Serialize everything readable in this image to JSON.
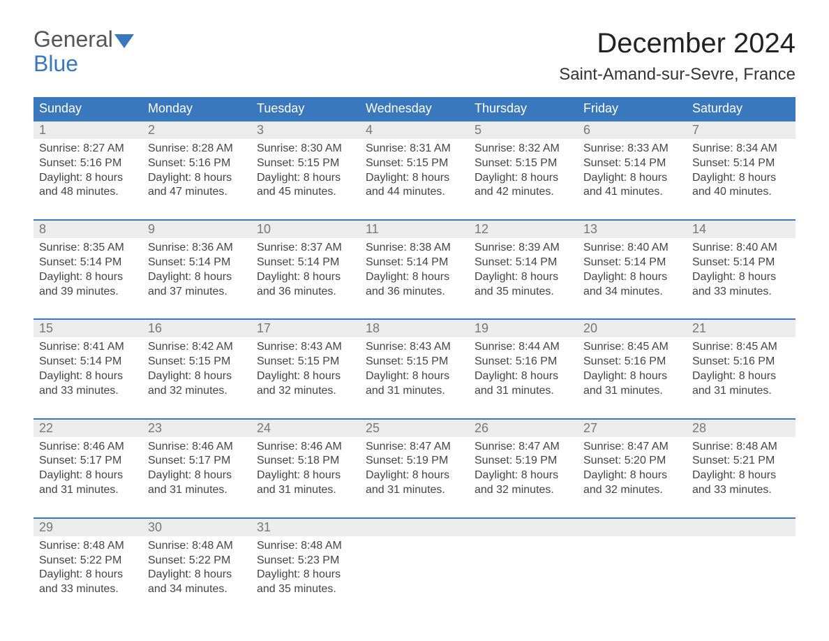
{
  "logo": {
    "line1": "General",
    "line2": "Blue"
  },
  "title": "December 2024",
  "location": "Saint-Amand-sur-Sevre, France",
  "colors": {
    "brand": "#3a78bd",
    "headerText": "#ffffff",
    "dayNumBg": "#ececec",
    "dayNumText": "#777777",
    "bodyText": "#444444",
    "pageBg": "#ffffff"
  },
  "typography": {
    "titleSize": 40,
    "locationSize": 24,
    "dayHeadSize": 18,
    "dayNumSize": 18,
    "bodySize": 16
  },
  "dayNames": [
    "Sunday",
    "Monday",
    "Tuesday",
    "Wednesday",
    "Thursday",
    "Friday",
    "Saturday"
  ],
  "labels": {
    "sunrise": "Sunrise:",
    "sunset": "Sunset:",
    "daylight": "Daylight:"
  },
  "weeks": [
    [
      {
        "n": "1",
        "sr": "8:27 AM",
        "ss": "5:16 PM",
        "dl": "8 hours and 48 minutes."
      },
      {
        "n": "2",
        "sr": "8:28 AM",
        "ss": "5:16 PM",
        "dl": "8 hours and 47 minutes."
      },
      {
        "n": "3",
        "sr": "8:30 AM",
        "ss": "5:15 PM",
        "dl": "8 hours and 45 minutes."
      },
      {
        "n": "4",
        "sr": "8:31 AM",
        "ss": "5:15 PM",
        "dl": "8 hours and 44 minutes."
      },
      {
        "n": "5",
        "sr": "8:32 AM",
        "ss": "5:15 PM",
        "dl": "8 hours and 42 minutes."
      },
      {
        "n": "6",
        "sr": "8:33 AM",
        "ss": "5:14 PM",
        "dl": "8 hours and 41 minutes."
      },
      {
        "n": "7",
        "sr": "8:34 AM",
        "ss": "5:14 PM",
        "dl": "8 hours and 40 minutes."
      }
    ],
    [
      {
        "n": "8",
        "sr": "8:35 AM",
        "ss": "5:14 PM",
        "dl": "8 hours and 39 minutes."
      },
      {
        "n": "9",
        "sr": "8:36 AM",
        "ss": "5:14 PM",
        "dl": "8 hours and 37 minutes."
      },
      {
        "n": "10",
        "sr": "8:37 AM",
        "ss": "5:14 PM",
        "dl": "8 hours and 36 minutes."
      },
      {
        "n": "11",
        "sr": "8:38 AM",
        "ss": "5:14 PM",
        "dl": "8 hours and 36 minutes."
      },
      {
        "n": "12",
        "sr": "8:39 AM",
        "ss": "5:14 PM",
        "dl": "8 hours and 35 minutes."
      },
      {
        "n": "13",
        "sr": "8:40 AM",
        "ss": "5:14 PM",
        "dl": "8 hours and 34 minutes."
      },
      {
        "n": "14",
        "sr": "8:40 AM",
        "ss": "5:14 PM",
        "dl": "8 hours and 33 minutes."
      }
    ],
    [
      {
        "n": "15",
        "sr": "8:41 AM",
        "ss": "5:14 PM",
        "dl": "8 hours and 33 minutes."
      },
      {
        "n": "16",
        "sr": "8:42 AM",
        "ss": "5:15 PM",
        "dl": "8 hours and 32 minutes."
      },
      {
        "n": "17",
        "sr": "8:43 AM",
        "ss": "5:15 PM",
        "dl": "8 hours and 32 minutes."
      },
      {
        "n": "18",
        "sr": "8:43 AM",
        "ss": "5:15 PM",
        "dl": "8 hours and 31 minutes."
      },
      {
        "n": "19",
        "sr": "8:44 AM",
        "ss": "5:16 PM",
        "dl": "8 hours and 31 minutes."
      },
      {
        "n": "20",
        "sr": "8:45 AM",
        "ss": "5:16 PM",
        "dl": "8 hours and 31 minutes."
      },
      {
        "n": "21",
        "sr": "8:45 AM",
        "ss": "5:16 PM",
        "dl": "8 hours and 31 minutes."
      }
    ],
    [
      {
        "n": "22",
        "sr": "8:46 AM",
        "ss": "5:17 PM",
        "dl": "8 hours and 31 minutes."
      },
      {
        "n": "23",
        "sr": "8:46 AM",
        "ss": "5:17 PM",
        "dl": "8 hours and 31 minutes."
      },
      {
        "n": "24",
        "sr": "8:46 AM",
        "ss": "5:18 PM",
        "dl": "8 hours and 31 minutes."
      },
      {
        "n": "25",
        "sr": "8:47 AM",
        "ss": "5:19 PM",
        "dl": "8 hours and 31 minutes."
      },
      {
        "n": "26",
        "sr": "8:47 AM",
        "ss": "5:19 PM",
        "dl": "8 hours and 32 minutes."
      },
      {
        "n": "27",
        "sr": "8:47 AM",
        "ss": "5:20 PM",
        "dl": "8 hours and 32 minutes."
      },
      {
        "n": "28",
        "sr": "8:48 AM",
        "ss": "5:21 PM",
        "dl": "8 hours and 33 minutes."
      }
    ],
    [
      {
        "n": "29",
        "sr": "8:48 AM",
        "ss": "5:22 PM",
        "dl": "8 hours and 33 minutes."
      },
      {
        "n": "30",
        "sr": "8:48 AM",
        "ss": "5:22 PM",
        "dl": "8 hours and 34 minutes."
      },
      {
        "n": "31",
        "sr": "8:48 AM",
        "ss": "5:23 PM",
        "dl": "8 hours and 35 minutes."
      },
      null,
      null,
      null,
      null
    ]
  ]
}
